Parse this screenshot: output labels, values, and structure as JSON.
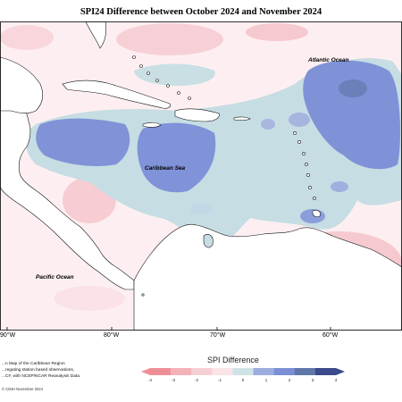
{
  "title": "SPI24 Difference between October 2024 and November 2024",
  "labels": {
    "atlantic": "Atlantic Ocean",
    "caribbean": "Caribbean Sea",
    "pacific": "Pacific Ocean"
  },
  "x_axis": {
    "ticks": [
      "90°W",
      "80°W",
      "70°W",
      "60°W"
    ]
  },
  "notes": [
    "...n Map of the Caribbean Region",
    "...regating station based observations,",
    "...CF, with NCEP/NCAR Reanalysis Data."
  ],
  "credit": "© CIMH November 2024",
  "legend": {
    "title": "SPI Difference",
    "ticks": [
      "-4",
      "-3",
      "-2",
      "-1",
      "0",
      "1",
      "2",
      "3",
      "4"
    ],
    "colors": [
      "#ee8f98",
      "#f3b2ba",
      "#f6cfd5",
      "#fae4e7",
      "#cfe3e7",
      "#9dacdf",
      "#7b8fd6",
      "#5f78a8",
      "#3a4a8a"
    ]
  },
  "colors": {
    "land": "#ffffff",
    "neutral_sea": "#fbe4e8",
    "light_blue": "#c6dde3",
    "blue": "#7f92d8",
    "dark_blue": "#6a7db5",
    "pink": "#f7cdd4"
  }
}
